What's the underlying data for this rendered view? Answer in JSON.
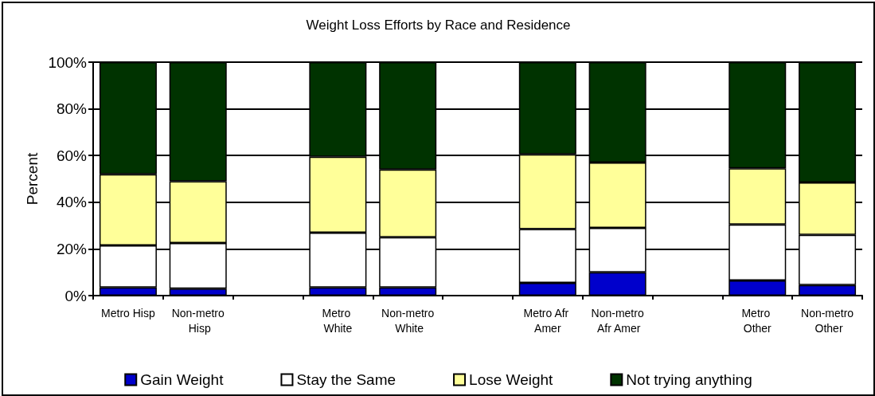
{
  "chart_data": {
    "type": "bar",
    "stacked": true,
    "title": "Weight Loss Efforts by Race and Residence",
    "ylabel": "Percent",
    "categories": [
      "Metro Hisp",
      "Non-metro Hisp",
      null,
      "Metro White",
      "Non-metro White",
      null,
      "Metro Afr Amer",
      "Non-metro Afr Amer",
      null,
      "Metro Other",
      "Non-metro Other"
    ],
    "series": [
      {
        "name": "Gain Weight",
        "color": "#0000cc",
        "values": [
          3.5,
          3,
          null,
          3.5,
          3.5,
          null,
          5.5,
          10,
          null,
          6.5,
          4.5
        ]
      },
      {
        "name": "Stay the Same",
        "color": "#ffffff",
        "values": [
          18,
          19.5,
          null,
          23.5,
          21.5,
          null,
          23,
          19,
          null,
          24,
          21.5
        ]
      },
      {
        "name": "Lose Weight",
        "color": "#ffff99",
        "values": [
          30.5,
          26.5,
          null,
          32.5,
          29,
          null,
          32,
          28,
          null,
          24,
          22.5
        ]
      },
      {
        "name": "Not trying anything",
        "color": "#003300",
        "values": [
          48,
          51,
          null,
          40.5,
          46,
          null,
          39.5,
          43,
          null,
          45.5,
          51.5
        ]
      }
    ],
    "ylim": [
      0,
      100
    ],
    "yticks": [
      {
        "value": 0,
        "label": "0%"
      },
      {
        "value": 20,
        "label": "20%"
      },
      {
        "value": 40,
        "label": "40%"
      },
      {
        "value": 60,
        "label": "60%"
      },
      {
        "value": 80,
        "label": "80%"
      },
      {
        "value": 100,
        "label": "100%"
      }
    ],
    "grid": "y",
    "legend": "bottom"
  }
}
